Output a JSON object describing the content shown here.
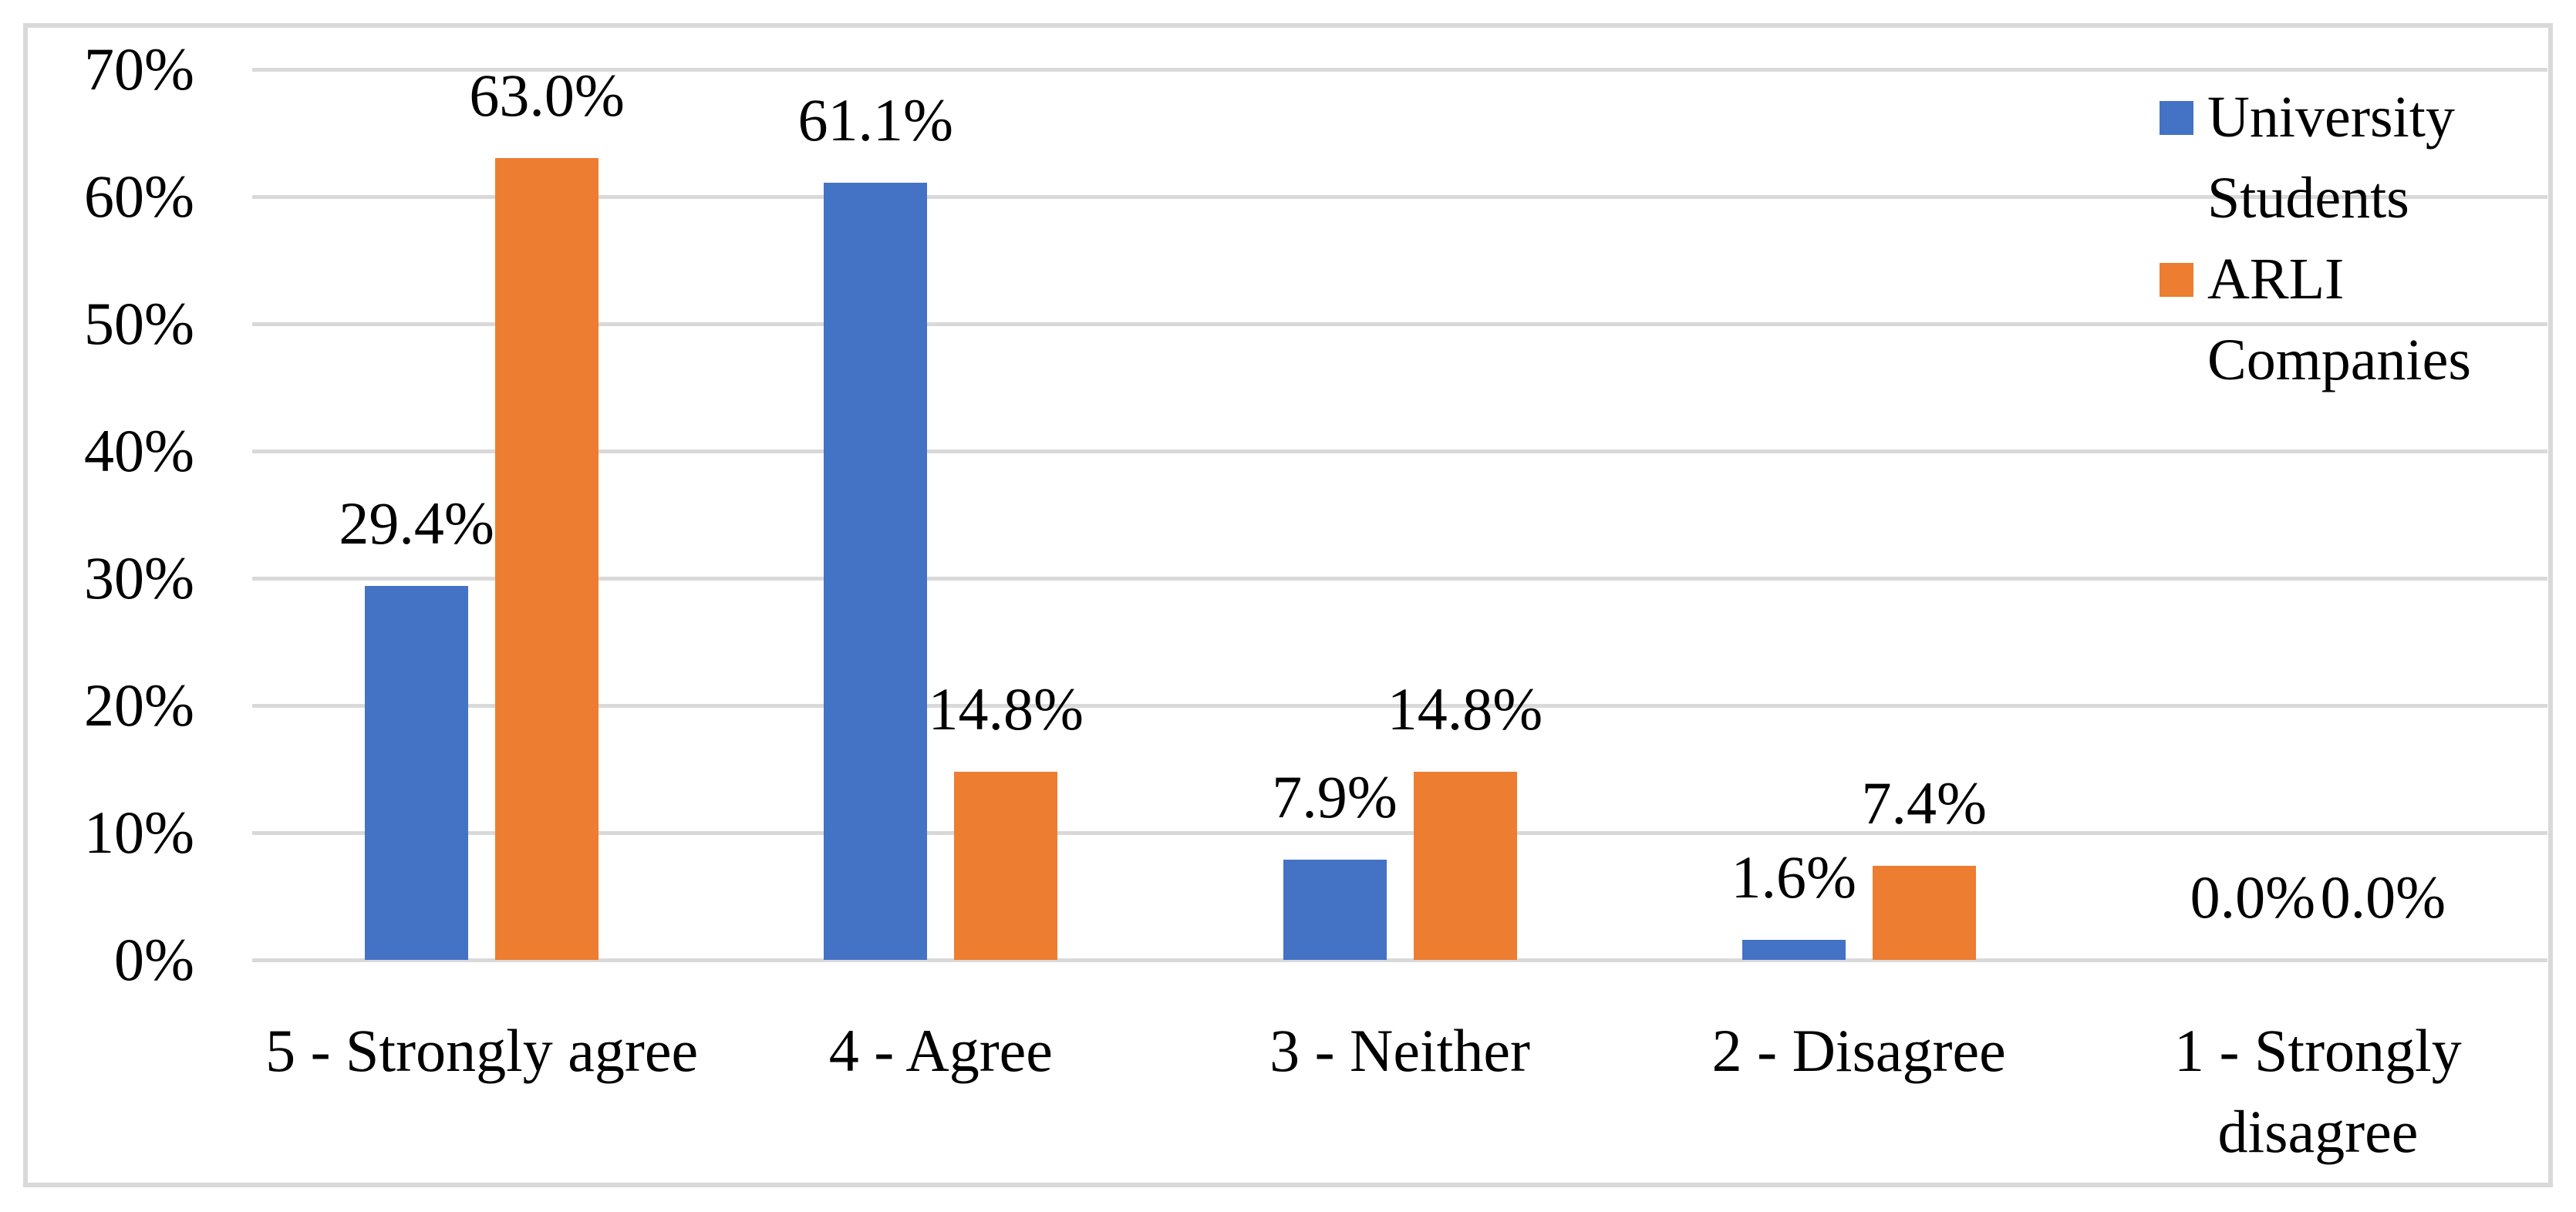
{
  "chart_data": {
    "type": "bar",
    "categories": [
      "5 - Strongly agree",
      "4 - Agree",
      "3 - Neither",
      "2 - Disagree",
      "1 - Strongly\ndisagree"
    ],
    "series": [
      {
        "name": "University Students",
        "color": "#4472C4",
        "values": [
          29.4,
          61.1,
          7.9,
          1.6,
          0.0
        ]
      },
      {
        "name": "ARLI Companies",
        "color": "#ED7D31",
        "values": [
          63.0,
          14.8,
          14.8,
          7.4,
          0.0
        ]
      }
    ],
    "data_labels": {
      "University Students": [
        "29.4%",
        "61.1%",
        "7.9%",
        "1.6%",
        "0.0%"
      ],
      "ARLI Companies": [
        "63.0%",
        "14.8%",
        "14.8%",
        "7.4%",
        "0.0%"
      ]
    },
    "value_format": "percent_one_decimal",
    "title": "",
    "xlabel": "",
    "ylabel": "",
    "y_ticks": [
      "70%",
      "60%",
      "50%",
      "40%",
      "30%",
      "20%",
      "10%",
      "0%"
    ],
    "ylim": [
      0,
      70
    ],
    "grid": true,
    "legend_position": "top-right"
  },
  "colors": {
    "series_blue": "#4472C4",
    "series_orange": "#ED7D31",
    "gridline": "#D9D9D9",
    "chart_border": "#D9D9D9",
    "text": "#000000",
    "background": "#FFFFFF"
  }
}
